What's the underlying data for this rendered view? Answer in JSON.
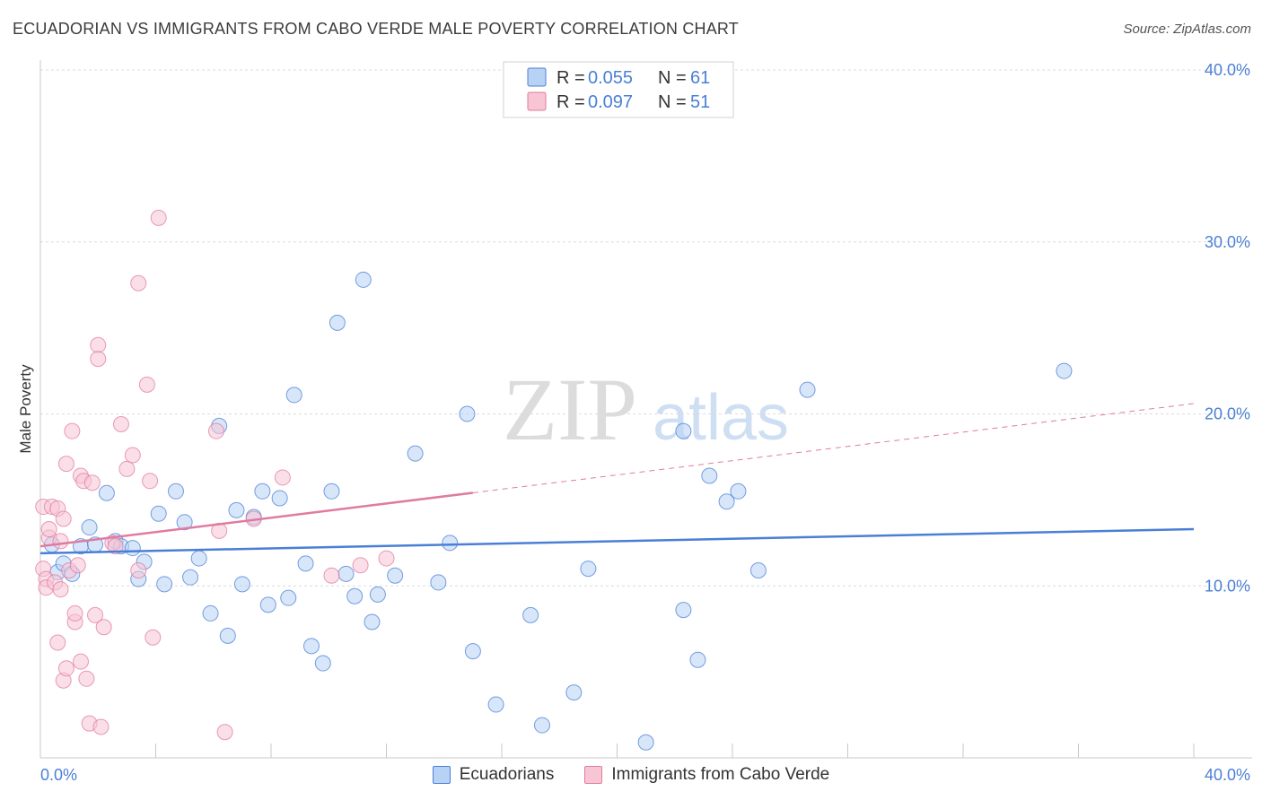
{
  "title": "ECUADORIAN VS IMMIGRANTS FROM CABO VERDE MALE POVERTY CORRELATION CHART",
  "source": "Source: ZipAtlas.com",
  "watermark": {
    "zip": "ZIP",
    "atlas": "atlas"
  },
  "chart_data": {
    "type": "scatter",
    "ylabel": "Male Poverty",
    "xlim": [
      0,
      40
    ],
    "ylim": [
      0,
      40
    ],
    "x_tick_labels": {
      "left": "0.0%",
      "right": "40.0%"
    },
    "y_ticks": [
      {
        "value": 10,
        "label": "10.0%"
      },
      {
        "value": 20,
        "label": "20.0%"
      },
      {
        "value": 30,
        "label": "30.0%"
      },
      {
        "value": 40,
        "label": "40.0%"
      }
    ],
    "legend": [
      {
        "r_label": "R =",
        "r_value": "0.055",
        "n_label": "N =",
        "n_value": "61",
        "color": "#4a7fd6",
        "fill": "#b8d2f5"
      },
      {
        "r_label": "R =",
        "r_value": "0.097",
        "n_label": "N =",
        "n_value": "51",
        "color": "#e07ba0",
        "fill": "#f8c5d5"
      }
    ],
    "series": [
      {
        "name": "Ecuadorians",
        "color": "#4a7fd6",
        "fill": "#b8d2f5",
        "trend": {
          "x0": 0,
          "y0": 11.9,
          "x1": 40,
          "y1": 13.3,
          "x_solid_end": 40
        },
        "points": [
          [
            0.4,
            12.4
          ],
          [
            0.6,
            10.8
          ],
          [
            0.8,
            11.3
          ],
          [
            1.1,
            10.7
          ],
          [
            1.4,
            12.3
          ],
          [
            1.7,
            13.4
          ],
          [
            1.9,
            12.4
          ],
          [
            2.3,
            15.4
          ],
          [
            2.6,
            12.6
          ],
          [
            2.8,
            12.3
          ],
          [
            3.2,
            12.2
          ],
          [
            3.4,
            10.4
          ],
          [
            3.6,
            11.4
          ],
          [
            4.1,
            14.2
          ],
          [
            4.3,
            10.1
          ],
          [
            4.7,
            15.5
          ],
          [
            5.0,
            13.7
          ],
          [
            5.2,
            10.5
          ],
          [
            5.5,
            11.6
          ],
          [
            5.9,
            8.4
          ],
          [
            6.2,
            19.3
          ],
          [
            6.5,
            7.1
          ],
          [
            6.8,
            14.4
          ],
          [
            7.0,
            10.1
          ],
          [
            7.4,
            14.0
          ],
          [
            7.7,
            15.5
          ],
          [
            7.9,
            8.9
          ],
          [
            8.3,
            15.1
          ],
          [
            8.6,
            9.3
          ],
          [
            8.8,
            21.1
          ],
          [
            9.2,
            11.3
          ],
          [
            9.4,
            6.5
          ],
          [
            9.8,
            5.5
          ],
          [
            10.1,
            15.5
          ],
          [
            10.3,
            25.3
          ],
          [
            10.6,
            10.7
          ],
          [
            10.9,
            9.4
          ],
          [
            11.2,
            27.8
          ],
          [
            11.5,
            7.9
          ],
          [
            11.7,
            9.5
          ],
          [
            12.3,
            10.6
          ],
          [
            13.0,
            17.7
          ],
          [
            13.8,
            10.2
          ],
          [
            14.2,
            12.5
          ],
          [
            14.8,
            20.0
          ],
          [
            15.0,
            6.2
          ],
          [
            15.8,
            3.1
          ],
          [
            17.0,
            8.3
          ],
          [
            17.4,
            1.9
          ],
          [
            18.5,
            3.8
          ],
          [
            19.0,
            11.0
          ],
          [
            21.0,
            0.9
          ],
          [
            22.3,
            8.6
          ],
          [
            22.8,
            5.7
          ],
          [
            22.3,
            19.0
          ],
          [
            23.2,
            16.4
          ],
          [
            23.8,
            14.9
          ],
          [
            24.2,
            15.5
          ],
          [
            24.9,
            10.9
          ],
          [
            26.6,
            21.4
          ],
          [
            35.5,
            22.5
          ]
        ]
      },
      {
        "name": "Immigrants from Cabo Verde",
        "color": "#e07ba0",
        "fill": "#f8c5d5",
        "trend": {
          "x0": 0,
          "y0": 12.3,
          "x1": 40,
          "y1": 20.6,
          "x_solid_end": 15.0
        },
        "points": [
          [
            0.1,
            14.6
          ],
          [
            0.1,
            11.0
          ],
          [
            0.2,
            10.4
          ],
          [
            0.2,
            9.9
          ],
          [
            0.3,
            12.8
          ],
          [
            0.3,
            13.3
          ],
          [
            0.4,
            14.6
          ],
          [
            0.5,
            10.2
          ],
          [
            0.6,
            14.5
          ],
          [
            0.6,
            6.7
          ],
          [
            0.7,
            12.6
          ],
          [
            0.7,
            9.8
          ],
          [
            0.8,
            4.5
          ],
          [
            0.8,
            13.9
          ],
          [
            0.9,
            5.2
          ],
          [
            0.9,
            17.1
          ],
          [
            1.0,
            10.9
          ],
          [
            1.1,
            19.0
          ],
          [
            1.2,
            7.9
          ],
          [
            1.2,
            8.4
          ],
          [
            1.3,
            11.2
          ],
          [
            1.4,
            5.6
          ],
          [
            1.4,
            16.4
          ],
          [
            1.5,
            16.1
          ],
          [
            1.6,
            4.6
          ],
          [
            1.7,
            2.0
          ],
          [
            1.8,
            16.0
          ],
          [
            1.9,
            8.3
          ],
          [
            2.1,
            1.8
          ],
          [
            2.0,
            24.0
          ],
          [
            2.0,
            23.2
          ],
          [
            2.2,
            7.6
          ],
          [
            2.5,
            12.5
          ],
          [
            2.6,
            12.3
          ],
          [
            2.8,
            19.4
          ],
          [
            3.0,
            16.8
          ],
          [
            3.2,
            17.6
          ],
          [
            3.4,
            27.6
          ],
          [
            3.4,
            10.9
          ],
          [
            3.7,
            21.7
          ],
          [
            3.8,
            16.1
          ],
          [
            3.9,
            7.0
          ],
          [
            4.1,
            31.4
          ],
          [
            6.1,
            19.0
          ],
          [
            6.2,
            13.2
          ],
          [
            6.4,
            1.5
          ],
          [
            7.4,
            13.9
          ],
          [
            8.4,
            16.3
          ],
          [
            10.1,
            10.6
          ],
          [
            11.1,
            11.2
          ],
          [
            12.0,
            11.6
          ]
        ]
      }
    ]
  }
}
